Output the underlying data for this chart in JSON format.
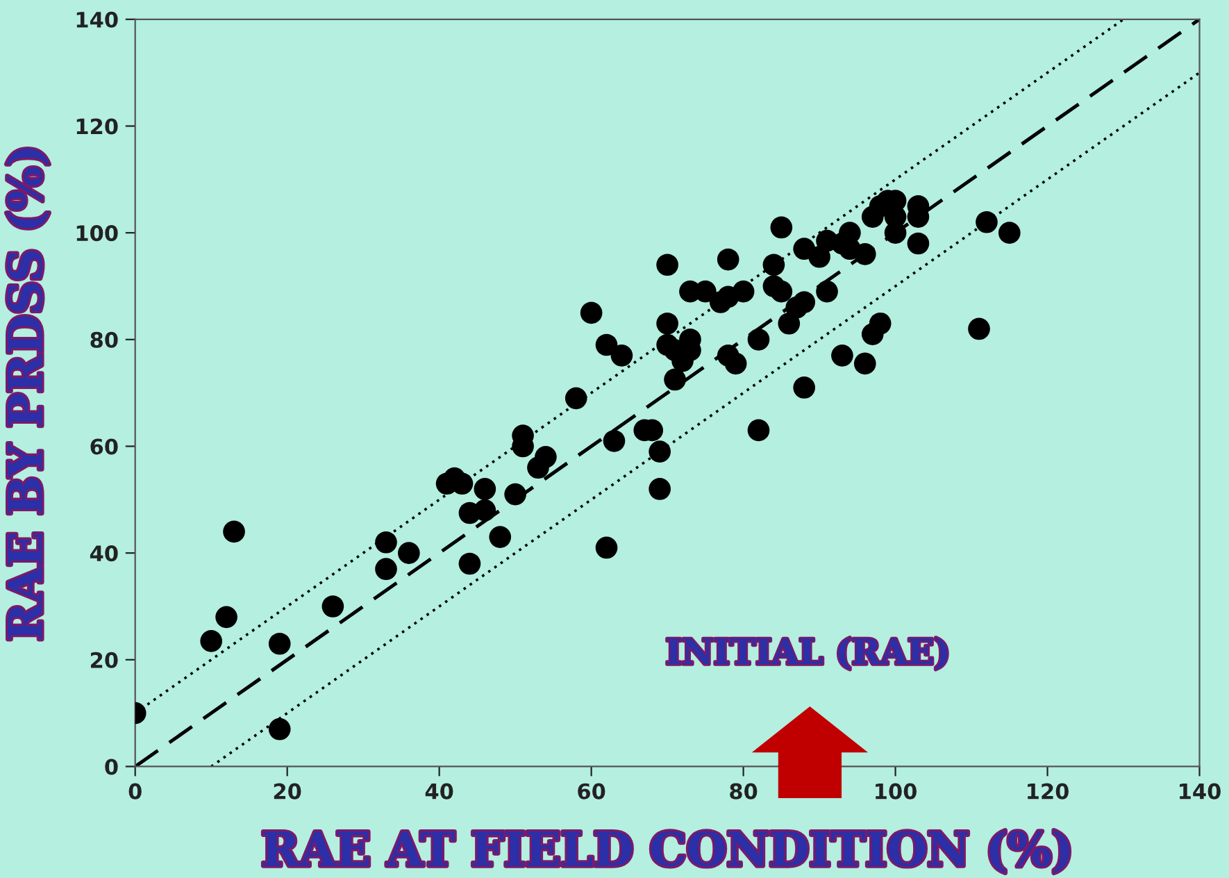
{
  "chart_data": {
    "type": "scatter",
    "xlabel": "RAE AT FIELD CONDITION (%)",
    "ylabel": "RAE BY PRDSS (%)",
    "xlim": [
      0,
      140
    ],
    "ylim": [
      0,
      140
    ],
    "xticks": [
      0,
      20,
      40,
      60,
      80,
      100,
      120,
      140
    ],
    "yticks": [
      0,
      20,
      40,
      60,
      80,
      100,
      120,
      140
    ],
    "grid": false,
    "legend": false,
    "annotations": [
      "INITIAL (RAE)"
    ],
    "series": [
      {
        "color": "#000000",
        "marker": "circle",
        "x": [
          0,
          10,
          12,
          13,
          19,
          19,
          26,
          33,
          33,
          36,
          41,
          42,
          43,
          44,
          44,
          46,
          46,
          48,
          50,
          51,
          51,
          53,
          54,
          58,
          60,
          62,
          62,
          63,
          64,
          67,
          68,
          69,
          69,
          70,
          70,
          70,
          71,
          71,
          72,
          73,
          73,
          73,
          75,
          77,
          78,
          78,
          78,
          79,
          80,
          82,
          82,
          84,
          84,
          85,
          85,
          86,
          87,
          88,
          88,
          88,
          90,
          91,
          91,
          93,
          93,
          94,
          94,
          96,
          96,
          97,
          97,
          98,
          98,
          99,
          100,
          100,
          100,
          103,
          103,
          103,
          111,
          112,
          115
        ],
        "values": [
          10,
          23.5,
          28,
          44,
          23,
          7,
          30,
          42,
          37,
          40,
          53,
          54,
          53,
          38,
          47.5,
          52,
          48,
          43,
          51,
          62,
          60,
          56,
          58,
          69,
          85,
          41,
          79,
          61,
          77,
          63,
          63,
          59,
          52,
          94,
          83,
          79,
          72.5,
          78,
          76,
          80,
          78,
          89,
          89,
          87,
          95,
          88,
          77,
          75.5,
          89,
          80,
          63,
          94,
          90,
          101,
          89,
          83,
          86,
          87,
          71,
          97,
          95.5,
          89,
          98.5,
          98,
          77,
          100,
          97,
          75.5,
          96,
          81,
          103,
          83,
          105,
          106,
          100,
          103,
          106,
          105,
          103,
          98,
          82,
          102,
          100
        ]
      },
      {
        "type": "line",
        "color": "#000000",
        "line_style": "dashed",
        "marker": "none",
        "x": [
          0,
          140
        ],
        "values": [
          0,
          140
        ]
      },
      {
        "type": "line",
        "color": "#000000",
        "line_style": "dotted",
        "marker": "none",
        "x": [
          0,
          130
        ],
        "values": [
          10,
          140
        ]
      },
      {
        "type": "line",
        "color": "#000000",
        "line_style": "dotted",
        "marker": "none",
        "x": [
          10,
          140
        ],
        "values": [
          0,
          130
        ]
      }
    ]
  }
}
